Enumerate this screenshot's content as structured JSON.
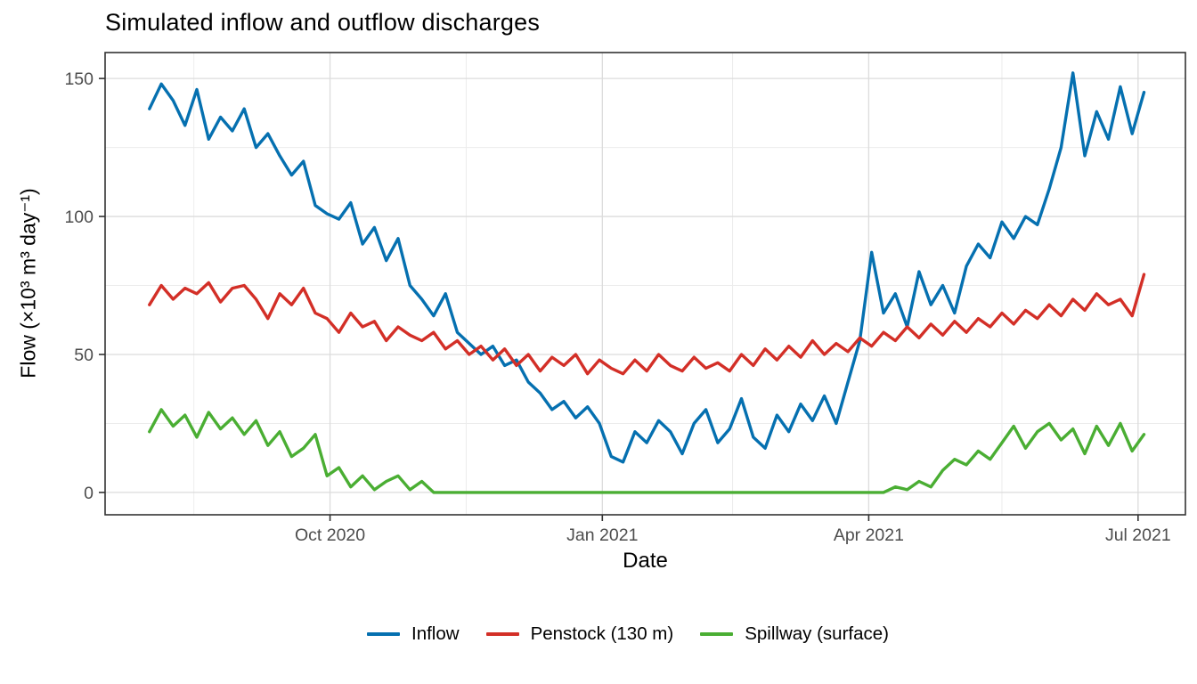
{
  "chart_data": {
    "type": "line",
    "title": "Simulated inflow and outflow discharges",
    "xlabel": "Date",
    "ylabel": "Flow (×10³ m³ day⁻¹)",
    "x_unit": "days since 2020-08-01, daily simulated series sampled every 4 days",
    "sample_step_days": 4,
    "x_tick_labels": [
      "Oct 2020",
      "Jan 2021",
      "Apr 2021",
      "Jul 2021"
    ],
    "x_tick_days": [
      61,
      153,
      243,
      334
    ],
    "x_minor_days": [
      15,
      107,
      197,
      288
    ],
    "y_ticks": [
      0,
      50,
      100,
      150
    ],
    "y_minor": [
      25,
      75,
      125
    ],
    "x_domain_days": [
      -15,
      350
    ],
    "y_domain": [
      -8.1,
      159.4
    ],
    "grid": true,
    "legend_position": "bottom",
    "colors": {
      "inflow": "#0570b0",
      "penstock": "#d32f27",
      "spillway": "#4aae33",
      "grid_major": "#dcdcdc",
      "grid_minor": "#ececec",
      "panel_border": "#333333",
      "tick_label": "#4d4d4d"
    },
    "series": [
      {
        "name": "Inflow",
        "color": "#0570b0",
        "values": [
          139,
          148,
          142,
          133,
          146,
          128,
          136,
          131,
          139,
          125,
          130,
          122,
          115,
          120,
          104,
          101,
          99,
          105,
          90,
          96,
          84,
          92,
          75,
          70,
          64,
          72,
          58,
          54,
          50,
          53,
          46,
          48,
          40,
          36,
          30,
          33,
          27,
          31,
          25,
          13,
          11,
          22,
          18,
          26,
          22,
          14,
          25,
          30,
          18,
          23,
          34,
          20,
          16,
          28,
          22,
          32,
          26,
          35,
          25,
          40,
          55,
          87,
          65,
          72,
          60,
          80,
          68,
          75,
          65,
          82,
          90,
          85,
          98,
          92,
          100,
          97,
          110,
          125,
          152,
          122,
          138,
          128,
          147,
          130,
          145
        ]
      },
      {
        "name": "Penstock (130 m)",
        "color": "#d32f27",
        "values": [
          68,
          75,
          70,
          74,
          72,
          76,
          69,
          74,
          75,
          70,
          63,
          72,
          68,
          74,
          65,
          63,
          58,
          65,
          60,
          62,
          55,
          60,
          57,
          55,
          58,
          52,
          55,
          50,
          53,
          48,
          52,
          46,
          50,
          44,
          49,
          46,
          50,
          43,
          48,
          45,
          43,
          48,
          44,
          50,
          46,
          44,
          49,
          45,
          47,
          44,
          50,
          46,
          52,
          48,
          53,
          49,
          55,
          50,
          54,
          51,
          56,
          53,
          58,
          55,
          60,
          56,
          61,
          57,
          62,
          58,
          63,
          60,
          65,
          61,
          66,
          63,
          68,
          64,
          70,
          66,
          72,
          68,
          70,
          64,
          79
        ]
      },
      {
        "name": "Spillway (surface)",
        "color": "#4aae33",
        "values": [
          22,
          30,
          24,
          28,
          20,
          29,
          23,
          27,
          21,
          26,
          17,
          22,
          13,
          16,
          21,
          6,
          9,
          2,
          6,
          1,
          4,
          6,
          1,
          4,
          0,
          0,
          0,
          0,
          0,
          0,
          0,
          0,
          0,
          0,
          0,
          0,
          0,
          0,
          0,
          0,
          0,
          0,
          0,
          0,
          0,
          0,
          0,
          0,
          0,
          0,
          0,
          0,
          0,
          0,
          0,
          0,
          0,
          0,
          0,
          0,
          0,
          0,
          0,
          2,
          1,
          4,
          2,
          8,
          12,
          10,
          15,
          12,
          18,
          24,
          16,
          22,
          25,
          19,
          23,
          14,
          24,
          17,
          25,
          15,
          21
        ]
      }
    ]
  },
  "legend": {
    "items": [
      {
        "label": "Inflow",
        "color": "#0570b0"
      },
      {
        "label": "Penstock (130 m)",
        "color": "#d32f27"
      },
      {
        "label": "Spillway (surface)",
        "color": "#4aae33"
      }
    ]
  }
}
